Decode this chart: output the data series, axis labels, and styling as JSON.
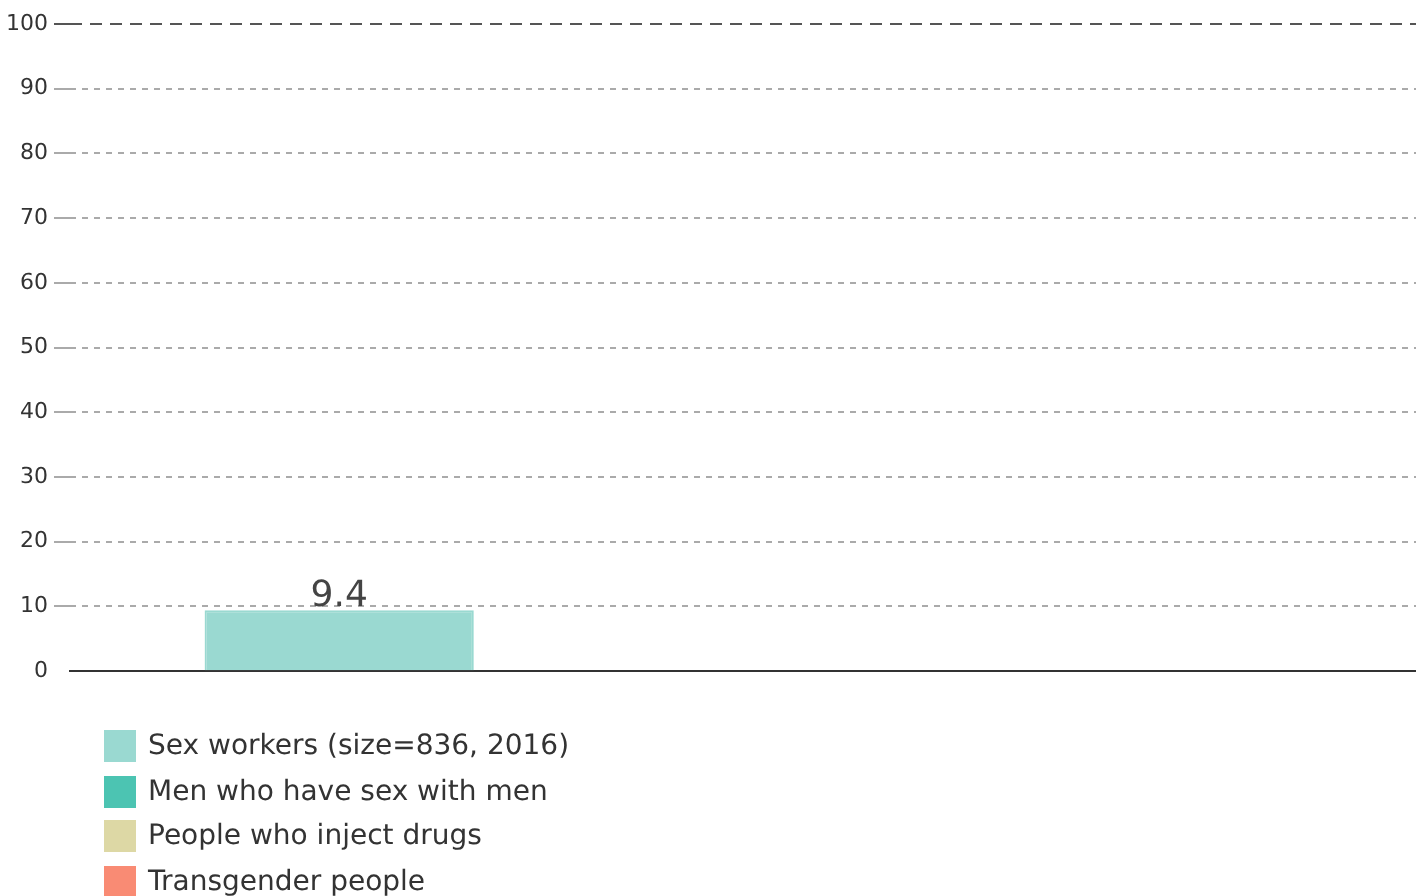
{
  "chart_data": {
    "type": "bar",
    "categories": [
      null
    ],
    "series": [
      {
        "name": "Sex workers (size=836, 2016)",
        "color": "#9ad9d1",
        "values": [
          9.4
        ]
      },
      {
        "name": "Men who have sex with men",
        "color": "#4cc4b2",
        "values": [
          null
        ]
      },
      {
        "name": "People who inject drugs",
        "color": "#ddd8a5",
        "values": [
          null
        ]
      },
      {
        "name": "Transgender people",
        "color": "#f98b74",
        "values": [
          null
        ]
      }
    ],
    "ylim": [
      0,
      100
    ],
    "yticks": [
      0,
      10,
      20,
      30,
      40,
      50,
      60,
      70,
      80,
      90,
      100
    ],
    "grid": "y",
    "legend": "bottom left",
    "data_labels": true
  }
}
